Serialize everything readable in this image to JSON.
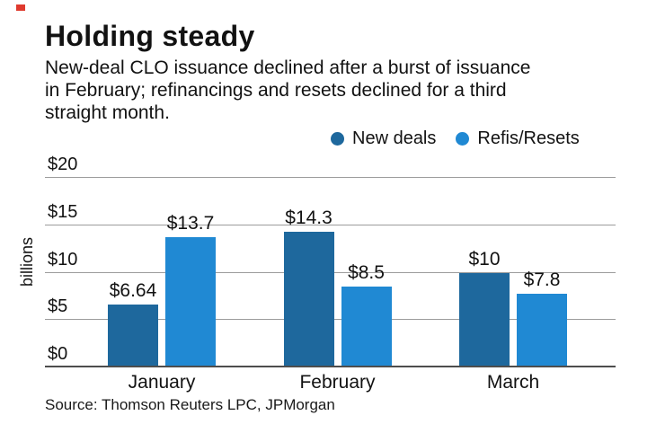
{
  "brand": {
    "accent_red": "#df3a2e"
  },
  "header": {
    "title": "Holding steady",
    "subtitle": "New-deal CLO issuance declined after a burst of issuance\nin February; refinancings and resets declined for a third\nstraight month."
  },
  "source_line": "Source: Thomson Reuters LPC, JPMorgan",
  "chart_data": {
    "type": "bar",
    "title": "Holding steady",
    "categories": [
      "January",
      "February",
      "March"
    ],
    "series": [
      {
        "name": "New deals",
        "color": "#1e689d",
        "values": [
          6.64,
          14.3,
          10
        ],
        "value_labels": [
          "$6.64",
          "$14.3",
          "$10"
        ]
      },
      {
        "name": "Refis/Resets",
        "color": "#2089d3",
        "values": [
          13.7,
          8.5,
          7.8
        ],
        "value_labels": [
          "$13.7",
          "$8.5",
          "$7.8"
        ]
      }
    ],
    "xlabel": "",
    "ylabel": "billions",
    "ylim": [
      0,
      20
    ],
    "yticks": [
      0,
      5,
      10,
      15,
      20
    ],
    "ytick_labels": [
      "$0",
      "$5",
      "$10",
      "$15",
      "$20"
    ],
    "grid": true,
    "legend_position": "top-right"
  }
}
